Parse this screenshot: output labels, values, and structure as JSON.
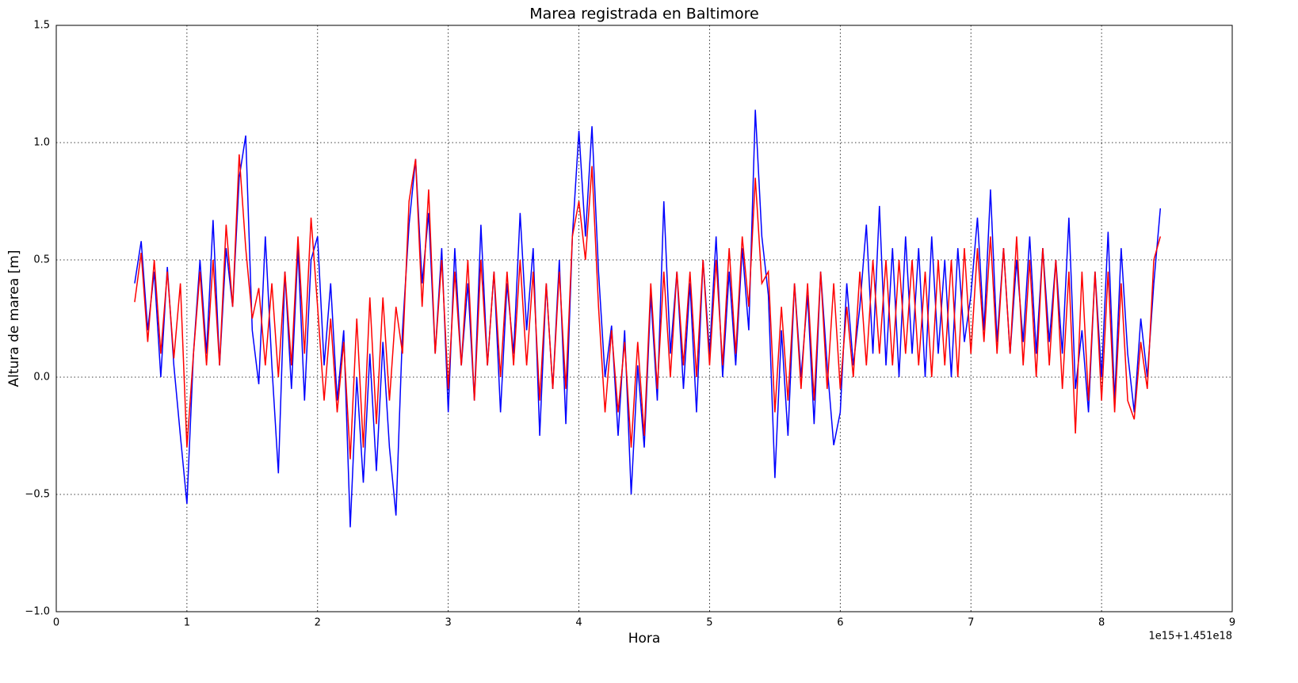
{
  "chart_data": {
    "type": "line",
    "title": "Marea registrada en Baltimore",
    "x_label": "Hora",
    "y_label": "Altura de marea [m]",
    "x_offset_label": "1e15+1.451e18",
    "x": [
      0.6,
      0.65,
      0.7,
      0.75,
      0.8,
      0.85,
      0.9,
      0.95,
      1.0,
      1.05,
      1.1,
      1.15,
      1.2,
      1.25,
      1.3,
      1.35,
      1.4,
      1.45,
      1.5,
      1.55,
      1.6,
      1.65,
      1.7,
      1.75,
      1.8,
      1.85,
      1.9,
      1.95,
      2.0,
      2.05,
      2.1,
      2.15,
      2.2,
      2.25,
      2.3,
      2.35,
      2.4,
      2.45,
      2.5,
      2.55,
      2.6,
      2.65,
      2.7,
      2.75,
      2.8,
      2.85,
      2.9,
      2.95,
      3.0,
      3.05,
      3.1,
      3.15,
      3.2,
      3.25,
      3.3,
      3.35,
      3.4,
      3.45,
      3.5,
      3.55,
      3.6,
      3.65,
      3.7,
      3.75,
      3.8,
      3.85,
      3.9,
      3.95,
      4.0,
      4.05,
      4.1,
      4.15,
      4.2,
      4.25,
      4.3,
      4.35,
      4.4,
      4.45,
      4.5,
      4.55,
      4.6,
      4.65,
      4.7,
      4.75,
      4.8,
      4.85,
      4.9,
      4.95,
      5.0,
      5.05,
      5.1,
      5.15,
      5.2,
      5.25,
      5.3,
      5.35,
      5.4,
      5.45,
      5.5,
      5.55,
      5.6,
      5.65,
      5.7,
      5.75,
      5.8,
      5.85,
      5.9,
      5.95,
      6.0,
      6.05,
      6.1,
      6.15,
      6.2,
      6.25,
      6.3,
      6.35,
      6.4,
      6.45,
      6.5,
      6.55,
      6.6,
      6.65,
      6.7,
      6.75,
      6.8,
      6.85,
      6.9,
      6.95,
      7.0,
      7.05,
      7.1,
      7.15,
      7.2,
      7.25,
      7.3,
      7.35,
      7.4,
      7.45,
      7.5,
      7.55,
      7.6,
      7.65,
      7.7,
      7.75,
      7.8,
      7.85,
      7.9,
      7.95,
      8.0,
      8.05,
      8.1,
      8.15,
      8.2,
      8.25,
      8.3,
      8.35,
      8.4,
      8.45
    ],
    "series": [
      {
        "color": "#0000ff",
        "values": [
          0.4,
          0.58,
          0.2,
          0.45,
          0.0,
          0.47,
          0.05,
          -0.25,
          -0.54,
          0.1,
          0.5,
          0.1,
          0.67,
          0.05,
          0.55,
          0.3,
          0.85,
          1.03,
          0.2,
          -0.03,
          0.6,
          0.05,
          -0.41,
          0.45,
          -0.05,
          0.55,
          -0.1,
          0.5,
          0.6,
          0.05,
          0.4,
          -0.1,
          0.2,
          -0.64,
          0.0,
          -0.45,
          0.1,
          -0.4,
          0.15,
          -0.3,
          -0.59,
          0.2,
          0.65,
          0.93,
          0.4,
          0.7,
          0.1,
          0.55,
          -0.15,
          0.55,
          0.05,
          0.4,
          -0.1,
          0.65,
          0.05,
          0.45,
          -0.15,
          0.4,
          0.1,
          0.7,
          0.2,
          0.55,
          -0.25,
          0.4,
          -0.05,
          0.5,
          -0.2,
          0.6,
          1.05,
          0.6,
          1.07,
          0.45,
          0.0,
          0.22,
          -0.25,
          0.2,
          -0.5,
          0.05,
          -0.3,
          0.35,
          -0.1,
          0.75,
          0.1,
          0.45,
          -0.05,
          0.4,
          -0.15,
          0.5,
          0.1,
          0.6,
          0.0,
          0.45,
          0.05,
          0.55,
          0.2,
          1.14,
          0.6,
          0.35,
          -0.43,
          0.2,
          -0.25,
          0.4,
          0.0,
          0.35,
          -0.2,
          0.45,
          0.05,
          -0.29,
          -0.15,
          0.4,
          0.05,
          0.3,
          0.65,
          0.1,
          0.73,
          0.05,
          0.55,
          0.0,
          0.6,
          0.1,
          0.55,
          0.0,
          0.6,
          0.1,
          0.5,
          0.0,
          0.55,
          0.15,
          0.35,
          0.68,
          0.2,
          0.8,
          0.15,
          0.55,
          0.1,
          0.5,
          0.15,
          0.6,
          0.1,
          0.55,
          0.15,
          0.5,
          0.1,
          0.68,
          -0.05,
          0.2,
          -0.15,
          0.45,
          0.0,
          0.62,
          -0.1,
          0.55,
          0.1,
          -0.15,
          0.25,
          0.0,
          0.4,
          0.72
        ]
      },
      {
        "color": "#ff0000",
        "values": [
          0.32,
          0.53,
          0.15,
          0.5,
          0.1,
          0.45,
          0.08,
          0.4,
          -0.3,
          0.1,
          0.45,
          0.05,
          0.5,
          0.05,
          0.65,
          0.3,
          0.95,
          0.55,
          0.25,
          0.38,
          0.05,
          0.4,
          0.0,
          0.45,
          0.05,
          0.6,
          0.1,
          0.68,
          0.3,
          -0.1,
          0.25,
          -0.15,
          0.15,
          -0.35,
          0.25,
          -0.3,
          0.34,
          -0.2,
          0.34,
          -0.1,
          0.3,
          0.1,
          0.75,
          0.93,
          0.3,
          0.8,
          0.1,
          0.5,
          -0.05,
          0.45,
          0.05,
          0.5,
          -0.1,
          0.5,
          0.05,
          0.45,
          0.0,
          0.45,
          0.05,
          0.5,
          0.05,
          0.45,
          -0.1,
          0.4,
          -0.05,
          0.45,
          -0.05,
          0.6,
          0.75,
          0.5,
          0.9,
          0.3,
          -0.15,
          0.2,
          -0.15,
          0.15,
          -0.3,
          0.15,
          -0.25,
          0.4,
          -0.05,
          0.45,
          0.0,
          0.45,
          0.05,
          0.45,
          0.0,
          0.5,
          0.05,
          0.5,
          0.05,
          0.55,
          0.1,
          0.6,
          0.3,
          0.85,
          0.4,
          0.45,
          -0.15,
          0.3,
          -0.1,
          0.4,
          -0.05,
          0.4,
          -0.1,
          0.45,
          -0.05,
          0.4,
          -0.05,
          0.3,
          0.0,
          0.45,
          0.05,
          0.5,
          0.1,
          0.5,
          0.05,
          0.5,
          0.1,
          0.5,
          0.05,
          0.45,
          0.0,
          0.5,
          0.05,
          0.5,
          0.0,
          0.55,
          0.1,
          0.55,
          0.15,
          0.6,
          0.1,
          0.55,
          0.1,
          0.6,
          0.05,
          0.5,
          0.0,
          0.55,
          0.05,
          0.5,
          -0.05,
          0.45,
          -0.24,
          0.45,
          -0.1,
          0.45,
          -0.1,
          0.45,
          -0.15,
          0.4,
          -0.1,
          -0.18,
          0.15,
          -0.05,
          0.5,
          0.6
        ]
      }
    ],
    "xlim": [
      0,
      9
    ],
    "xticks": [
      0,
      1,
      2,
      3,
      4,
      5,
      6,
      7,
      8,
      9
    ],
    "ylim": [
      -1.0,
      1.5
    ],
    "yticks": [
      {
        "value": -1.0,
        "label": "−1.0"
      },
      {
        "value": -0.5,
        "label": "−0.5"
      },
      {
        "value": 0,
        "label": "0.0"
      },
      0.5,
      {
        "value": 1.0,
        "label": "1.0"
      },
      1.5
    ],
    "grid": true
  }
}
